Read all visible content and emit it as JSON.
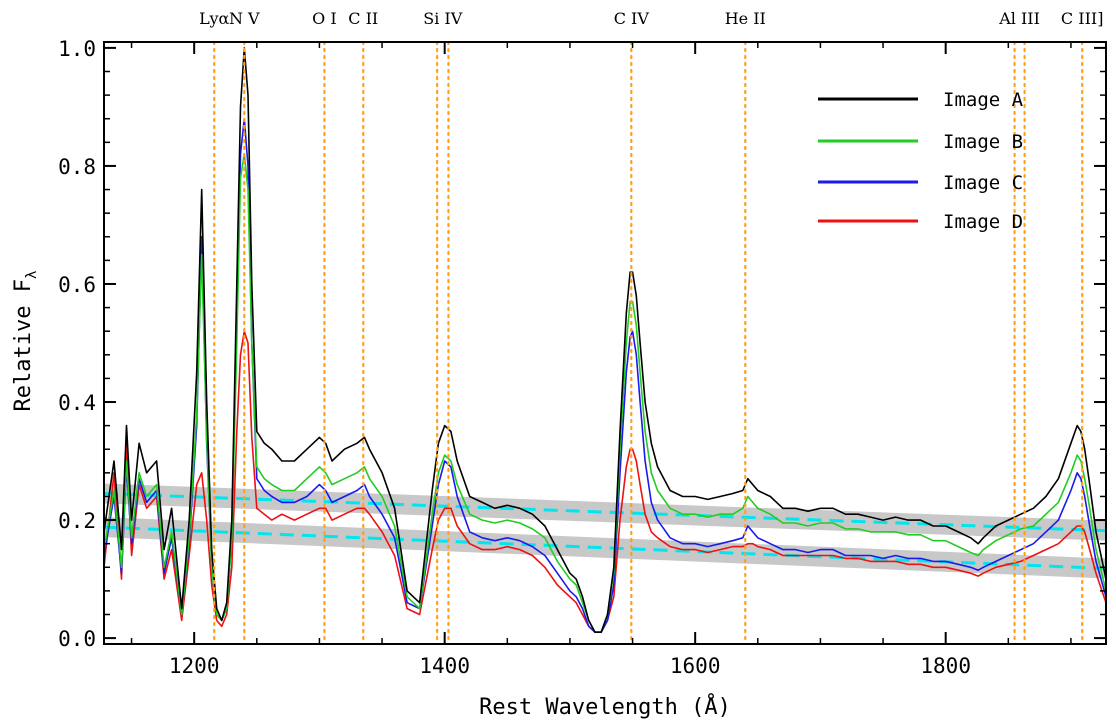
{
  "chart_data": {
    "type": "line",
    "title": "",
    "xlabel": "Rest Wavelength (Å)",
    "ylabel": "Relative F",
    "ylabel_subscript": "λ",
    "xlim": [
      1128,
      1928
    ],
    "ylim": [
      -0.01,
      1.01
    ],
    "x_ticks": [
      {
        "value": 1200,
        "label": "1200"
      },
      {
        "value": 1400,
        "label": "1400"
      },
      {
        "value": 1600,
        "label": "1600"
      },
      {
        "value": 1800,
        "label": "1800"
      }
    ],
    "y_ticks": [
      {
        "value": 0.0,
        "label": "0.0"
      },
      {
        "value": 0.2,
        "label": "0.2"
      },
      {
        "value": 0.4,
        "label": "0.4"
      },
      {
        "value": 0.6,
        "label": "0.6"
      },
      {
        "value": 0.8,
        "label": "0.8"
      },
      {
        "value": 1.0,
        "label": "1.0"
      }
    ],
    "grid": false,
    "legend_position": "top-right",
    "emission_lines": [
      {
        "label": "Lyα",
        "wavelengths": [
          1216
        ]
      },
      {
        "label": "N V",
        "wavelengths": [
          1240
        ]
      },
      {
        "label": "O I",
        "wavelengths": [
          1304
        ]
      },
      {
        "label": "C II",
        "wavelengths": [
          1335
        ]
      },
      {
        "label": "Si IV",
        "wavelengths": [
          1394,
          1403
        ]
      },
      {
        "label": "C IV",
        "wavelengths": [
          1549
        ]
      },
      {
        "label": "He II",
        "wavelengths": [
          1640
        ]
      },
      {
        "label": "Al III",
        "wavelengths": [
          1855,
          1863
        ]
      },
      {
        "label": "C III]",
        "wavelengths": [
          1909
        ]
      }
    ],
    "continuum_bands": [
      {
        "x": [
          1128,
          1928
        ],
        "y": [
          0.245,
          0.182
        ],
        "band_color": "#c8c8c8",
        "line_color": "#00e5ee"
      },
      {
        "x": [
          1128,
          1928
        ],
        "y": [
          0.188,
          0.118
        ],
        "band_color": "#c8c8c8",
        "line_color": "#00e5ee"
      }
    ],
    "x": [
      1128,
      1136,
      1142,
      1146,
      1150,
      1156,
      1162,
      1170,
      1176,
      1182,
      1190,
      1196,
      1202,
      1206,
      1210,
      1214,
      1218,
      1222,
      1226,
      1230,
      1234,
      1237,
      1240,
      1243,
      1246,
      1250,
      1256,
      1262,
      1270,
      1280,
      1290,
      1300,
      1305,
      1310,
      1320,
      1330,
      1336,
      1340,
      1350,
      1360,
      1370,
      1380,
      1390,
      1395,
      1400,
      1405,
      1410,
      1420,
      1430,
      1440,
      1450,
      1460,
      1470,
      1480,
      1490,
      1500,
      1505,
      1510,
      1515,
      1520,
      1525,
      1530,
      1535,
      1540,
      1545,
      1548,
      1550,
      1553,
      1556,
      1560,
      1565,
      1570,
      1580,
      1590,
      1600,
      1610,
      1620,
      1630,
      1638,
      1642,
      1646,
      1650,
      1660,
      1670,
      1680,
      1690,
      1700,
      1710,
      1720,
      1730,
      1740,
      1750,
      1760,
      1770,
      1780,
      1790,
      1800,
      1810,
      1820,
      1826,
      1830,
      1840,
      1850,
      1860,
      1870,
      1880,
      1890,
      1900,
      1905,
      1908,
      1911,
      1915,
      1920,
      1928
    ],
    "series": [
      {
        "name": "Image A",
        "color": "#000000",
        "values": [
          0.18,
          0.3,
          0.15,
          0.36,
          0.2,
          0.33,
          0.28,
          0.3,
          0.15,
          0.22,
          0.05,
          0.2,
          0.45,
          0.76,
          0.4,
          0.15,
          0.05,
          0.03,
          0.06,
          0.2,
          0.6,
          0.9,
          1.0,
          0.92,
          0.6,
          0.35,
          0.33,
          0.32,
          0.3,
          0.3,
          0.32,
          0.34,
          0.33,
          0.3,
          0.32,
          0.33,
          0.34,
          0.32,
          0.28,
          0.22,
          0.08,
          0.06,
          0.25,
          0.33,
          0.36,
          0.35,
          0.3,
          0.24,
          0.23,
          0.22,
          0.225,
          0.22,
          0.21,
          0.19,
          0.15,
          0.11,
          0.1,
          0.07,
          0.03,
          0.01,
          0.01,
          0.04,
          0.12,
          0.35,
          0.55,
          0.62,
          0.62,
          0.58,
          0.5,
          0.4,
          0.33,
          0.29,
          0.25,
          0.24,
          0.24,
          0.235,
          0.24,
          0.245,
          0.25,
          0.27,
          0.26,
          0.25,
          0.24,
          0.22,
          0.22,
          0.215,
          0.22,
          0.22,
          0.21,
          0.21,
          0.205,
          0.2,
          0.205,
          0.2,
          0.2,
          0.19,
          0.19,
          0.18,
          0.17,
          0.16,
          0.17,
          0.19,
          0.2,
          0.21,
          0.22,
          0.24,
          0.27,
          0.33,
          0.36,
          0.35,
          0.32,
          0.26,
          0.18,
          0.1
        ]
      },
      {
        "name": "Image B",
        "color": "#22cc22",
        "values": [
          0.15,
          0.25,
          0.12,
          0.3,
          0.17,
          0.28,
          0.24,
          0.26,
          0.12,
          0.18,
          0.04,
          0.17,
          0.38,
          0.65,
          0.34,
          0.12,
          0.04,
          0.03,
          0.05,
          0.17,
          0.5,
          0.78,
          0.82,
          0.76,
          0.5,
          0.29,
          0.27,
          0.26,
          0.25,
          0.25,
          0.27,
          0.29,
          0.28,
          0.26,
          0.27,
          0.28,
          0.29,
          0.27,
          0.24,
          0.19,
          0.07,
          0.05,
          0.21,
          0.28,
          0.31,
          0.3,
          0.26,
          0.21,
          0.2,
          0.195,
          0.2,
          0.195,
          0.185,
          0.17,
          0.13,
          0.1,
          0.09,
          0.06,
          0.03,
          0.01,
          0.01,
          0.04,
          0.11,
          0.32,
          0.5,
          0.57,
          0.57,
          0.53,
          0.45,
          0.35,
          0.28,
          0.25,
          0.22,
          0.21,
          0.21,
          0.205,
          0.21,
          0.21,
          0.22,
          0.24,
          0.23,
          0.22,
          0.21,
          0.195,
          0.195,
          0.19,
          0.195,
          0.195,
          0.185,
          0.185,
          0.18,
          0.18,
          0.18,
          0.175,
          0.175,
          0.165,
          0.165,
          0.155,
          0.145,
          0.14,
          0.15,
          0.165,
          0.175,
          0.185,
          0.19,
          0.21,
          0.23,
          0.28,
          0.31,
          0.3,
          0.27,
          0.22,
          0.15,
          0.08
        ]
      },
      {
        "name": "Image C",
        "color": "#1a1aee",
        "values": [
          0.14,
          0.24,
          0.11,
          0.29,
          0.16,
          0.27,
          0.23,
          0.25,
          0.11,
          0.17,
          0.04,
          0.16,
          0.36,
          0.68,
          0.33,
          0.12,
          0.04,
          0.03,
          0.05,
          0.17,
          0.55,
          0.82,
          0.88,
          0.8,
          0.5,
          0.27,
          0.25,
          0.24,
          0.23,
          0.23,
          0.24,
          0.26,
          0.25,
          0.23,
          0.24,
          0.25,
          0.26,
          0.24,
          0.21,
          0.17,
          0.06,
          0.05,
          0.19,
          0.26,
          0.3,
          0.29,
          0.24,
          0.18,
          0.17,
          0.165,
          0.17,
          0.165,
          0.155,
          0.14,
          0.11,
          0.08,
          0.07,
          0.05,
          0.02,
          0.01,
          0.01,
          0.03,
          0.09,
          0.28,
          0.45,
          0.51,
          0.52,
          0.48,
          0.4,
          0.3,
          0.23,
          0.2,
          0.17,
          0.16,
          0.16,
          0.155,
          0.16,
          0.165,
          0.17,
          0.19,
          0.18,
          0.17,
          0.16,
          0.15,
          0.15,
          0.145,
          0.15,
          0.15,
          0.14,
          0.14,
          0.14,
          0.135,
          0.14,
          0.135,
          0.135,
          0.13,
          0.13,
          0.125,
          0.12,
          0.115,
          0.12,
          0.13,
          0.14,
          0.15,
          0.16,
          0.18,
          0.2,
          0.25,
          0.28,
          0.27,
          0.24,
          0.19,
          0.13,
          0.07
        ]
      },
      {
        "name": "Image D",
        "color": "#ee1111",
        "values": [
          0.12,
          0.28,
          0.1,
          0.33,
          0.14,
          0.26,
          0.22,
          0.24,
          0.1,
          0.15,
          0.03,
          0.14,
          0.26,
          0.28,
          0.2,
          0.09,
          0.03,
          0.02,
          0.04,
          0.12,
          0.35,
          0.48,
          0.52,
          0.5,
          0.34,
          0.22,
          0.21,
          0.2,
          0.21,
          0.2,
          0.21,
          0.22,
          0.22,
          0.2,
          0.21,
          0.22,
          0.22,
          0.21,
          0.18,
          0.14,
          0.05,
          0.04,
          0.15,
          0.2,
          0.22,
          0.22,
          0.19,
          0.16,
          0.15,
          0.15,
          0.155,
          0.15,
          0.14,
          0.12,
          0.09,
          0.07,
          0.06,
          0.04,
          0.02,
          0.01,
          0.01,
          0.03,
          0.07,
          0.2,
          0.29,
          0.32,
          0.32,
          0.3,
          0.26,
          0.21,
          0.18,
          0.17,
          0.155,
          0.15,
          0.15,
          0.145,
          0.15,
          0.155,
          0.155,
          0.16,
          0.16,
          0.155,
          0.15,
          0.14,
          0.14,
          0.14,
          0.14,
          0.14,
          0.135,
          0.135,
          0.13,
          0.13,
          0.13,
          0.125,
          0.125,
          0.12,
          0.12,
          0.115,
          0.11,
          0.105,
          0.11,
          0.12,
          0.125,
          0.13,
          0.14,
          0.15,
          0.16,
          0.18,
          0.19,
          0.19,
          0.18,
          0.15,
          0.11,
          0.06
        ]
      }
    ]
  }
}
